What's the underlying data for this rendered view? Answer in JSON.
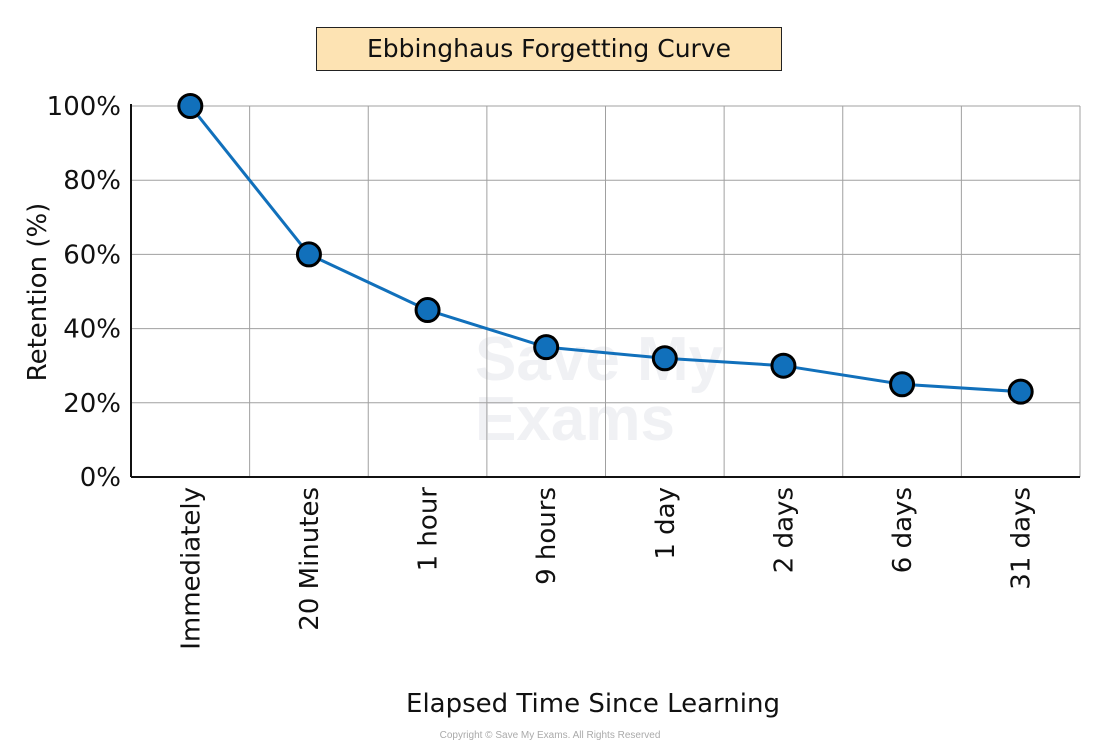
{
  "chart_data": {
    "type": "line",
    "title": "Ebbinghaus Forgetting Curve",
    "xlabel": "Elapsed Time Since Learning",
    "ylabel": "Retention (%)",
    "categories": [
      "Immediately",
      "20 Minutes",
      "1 hour",
      "9 hours",
      "1 day",
      "2 days",
      "6 days",
      "31 days"
    ],
    "values": [
      100,
      60,
      45,
      35,
      32,
      30,
      25,
      23
    ],
    "ylim": [
      0,
      100
    ],
    "yticks": [
      "0%",
      "20%",
      "40%",
      "60%",
      "80%",
      "100%"
    ],
    "grid": true,
    "line_color": "#1170bb",
    "marker_color": "#1170bb",
    "title_background": "#fde3b3"
  },
  "watermark": "Save My Exams",
  "copyright": "Copyright © Save My Exams. All Rights Reserved"
}
